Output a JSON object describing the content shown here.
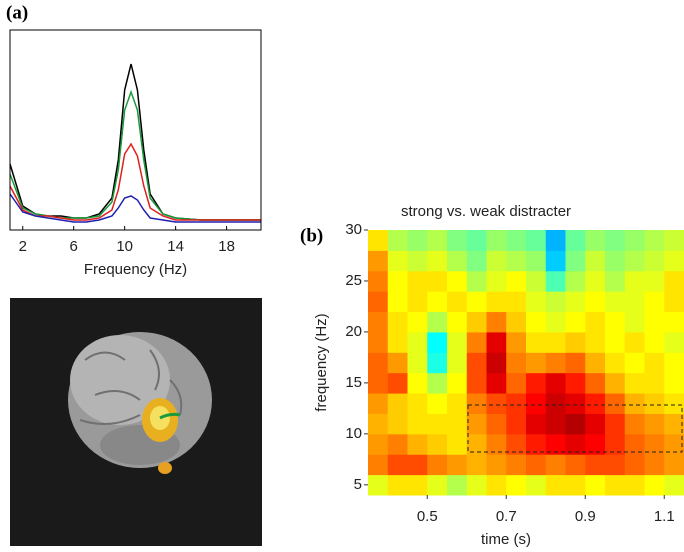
{
  "chart_data": [
    {
      "type": "line",
      "label": "(a)",
      "xlabel": "Frequency (Hz)",
      "x": [
        1,
        2,
        3,
        4,
        5,
        6,
        7,
        8,
        9,
        9.5,
        10,
        10.5,
        11,
        11.5,
        12,
        13,
        14,
        16,
        18,
        20.7
      ],
      "xlim": [
        1,
        20.7
      ],
      "xticks": [
        2,
        6,
        10,
        14,
        18
      ],
      "ylim": [
        0,
        1
      ],
      "series": [
        {
          "color": "#000000",
          "values": [
            0.33,
            0.12,
            0.08,
            0.07,
            0.07,
            0.06,
            0.06,
            0.08,
            0.16,
            0.35,
            0.7,
            0.83,
            0.7,
            0.4,
            0.18,
            0.08,
            0.06,
            0.05,
            0.05,
            0.05
          ]
        },
        {
          "color": "#1a9a3a",
          "values": [
            0.28,
            0.11,
            0.08,
            0.07,
            0.06,
            0.06,
            0.06,
            0.07,
            0.14,
            0.3,
            0.6,
            0.69,
            0.6,
            0.35,
            0.16,
            0.08,
            0.06,
            0.05,
            0.05,
            0.05
          ]
        },
        {
          "color": "#e02020",
          "values": [
            0.22,
            0.1,
            0.07,
            0.07,
            0.06,
            0.05,
            0.05,
            0.06,
            0.1,
            0.2,
            0.38,
            0.43,
            0.37,
            0.22,
            0.11,
            0.07,
            0.05,
            0.05,
            0.05,
            0.05
          ]
        },
        {
          "color": "#2020b0",
          "values": [
            0.18,
            0.09,
            0.07,
            0.06,
            0.05,
            0.04,
            0.04,
            0.05,
            0.07,
            0.11,
            0.16,
            0.17,
            0.15,
            0.1,
            0.06,
            0.05,
            0.04,
            0.04,
            0.04,
            0.04
          ]
        }
      ]
    },
    {
      "type": "heatmap",
      "label": "(b)",
      "title": "strong vs. weak distracter",
      "xlabel": "time (s)",
      "ylabel": "frequency (Hz)",
      "x": [
        0.375,
        0.425,
        0.475,
        0.525,
        0.575,
        0.625,
        0.675,
        0.725,
        0.775,
        0.825,
        0.875,
        0.925,
        0.975,
        1.025,
        1.075,
        1.125
      ],
      "y": [
        5,
        7,
        9,
        11,
        13,
        15,
        17,
        19,
        21,
        23,
        25,
        27,
        29
      ],
      "xlim": [
        0.35,
        1.15
      ],
      "ylim": [
        4,
        30
      ],
      "xticks": [
        0.5,
        0.7,
        0.9,
        1.1
      ],
      "yticks": [
        5,
        10,
        15,
        20,
        25,
        30
      ],
      "zlim": [
        -1,
        1
      ],
      "z": [
        [
          0.2,
          0.3,
          0.3,
          0.2,
          0.1,
          0.2,
          0.3,
          0.25,
          0.2,
          0.3,
          0.3,
          0.25,
          0.3,
          0.3,
          0.25,
          0.2
        ],
        [
          0.5,
          0.6,
          0.6,
          0.5,
          0.45,
          0.4,
          0.45,
          0.5,
          0.55,
          0.5,
          0.55,
          0.6,
          0.6,
          0.55,
          0.5,
          0.45
        ],
        [
          0.45,
          0.5,
          0.4,
          0.35,
          0.3,
          0.4,
          0.5,
          0.6,
          0.7,
          0.75,
          0.8,
          0.75,
          0.65,
          0.55,
          0.5,
          0.45
        ],
        [
          0.4,
          0.35,
          0.3,
          0.3,
          0.3,
          0.45,
          0.55,
          0.65,
          0.8,
          0.85,
          0.9,
          0.8,
          0.65,
          0.5,
          0.45,
          0.4
        ],
        [
          0.45,
          0.35,
          0.3,
          0.25,
          0.3,
          0.5,
          0.6,
          0.65,
          0.75,
          0.85,
          0.8,
          0.7,
          0.55,
          0.4,
          0.35,
          0.3
        ],
        [
          0.55,
          0.6,
          0.25,
          0.1,
          0.25,
          0.6,
          0.8,
          0.55,
          0.7,
          0.8,
          0.7,
          0.55,
          0.4,
          0.3,
          0.3,
          0.25
        ],
        [
          0.55,
          0.45,
          0.2,
          -0.2,
          0.2,
          0.6,
          0.85,
          0.5,
          0.45,
          0.5,
          0.55,
          0.4,
          0.3,
          0.25,
          0.3,
          0.25
        ],
        [
          0.5,
          0.3,
          0.2,
          -0.25,
          0.2,
          0.5,
          0.8,
          0.45,
          0.3,
          0.3,
          0.35,
          0.3,
          0.25,
          0.3,
          0.25,
          0.2
        ],
        [
          0.5,
          0.3,
          0.25,
          0.1,
          0.25,
          0.35,
          0.5,
          0.35,
          0.25,
          0.2,
          0.25,
          0.3,
          0.25,
          0.2,
          0.25,
          0.25
        ],
        [
          0.55,
          0.25,
          0.3,
          0.25,
          0.3,
          0.25,
          0.3,
          0.3,
          0.2,
          0.15,
          0.2,
          0.25,
          0.2,
          0.2,
          0.25,
          0.3
        ],
        [
          0.5,
          0.25,
          0.3,
          0.3,
          0.25,
          0.1,
          0.2,
          0.25,
          0.15,
          -0.1,
          0.1,
          0.2,
          0.1,
          0.2,
          0.2,
          0.3
        ],
        [
          0.45,
          0.2,
          0.15,
          0.2,
          0.1,
          0.0,
          0.15,
          0.1,
          0.05,
          -0.35,
          0.0,
          0.15,
          0.05,
          0.1,
          0.15,
          0.2
        ],
        [
          0.3,
          0.1,
          0.05,
          0.1,
          0.0,
          -0.05,
          0.05,
          0.0,
          -0.05,
          -0.4,
          -0.05,
          0.05,
          0.0,
          0.05,
          0.1,
          0.15
        ]
      ]
    }
  ]
}
